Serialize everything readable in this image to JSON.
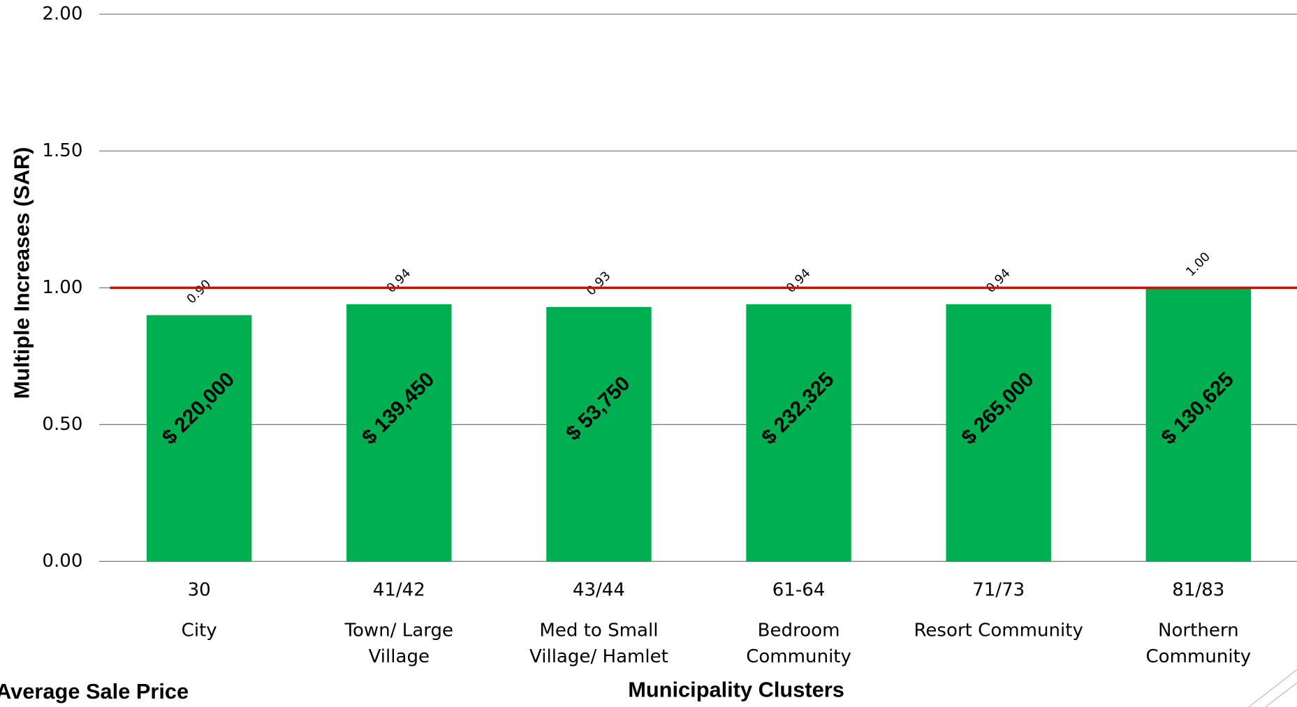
{
  "chart_data": {
    "type": "bar",
    "y_axis_label": "Multiple Increases (SAR)",
    "x_axis_label": "Municipality Clusters",
    "categories": [
      "30",
      "41/42",
      "43/44",
      "61-64",
      "71/73",
      "81/83"
    ],
    "category_labels": [
      [
        "City"
      ],
      [
        "Town/ Large",
        "Village"
      ],
      [
        "Med to Small",
        "Village/ Hamlet"
      ],
      [
        "Bedroom",
        "Community"
      ],
      [
        "Resort Community"
      ],
      [
        "Northern",
        "Community"
      ]
    ],
    "values": [
      0.9,
      0.94,
      0.93,
      0.94,
      0.94,
      1.0
    ],
    "value_labels": [
      "0.90",
      "0.94",
      "0.93",
      "0.94",
      "0.94",
      "1.00"
    ],
    "color": "#00b050",
    "average_sale_price": {
      "name": "Average Sale Price",
      "values": [
        220000,
        139450,
        53750,
        232325,
        265000,
        130625
      ],
      "value_labels": [
        "$ 220,000",
        "$ 139,450",
        "$ 53,750",
        "$ 232,325",
        "$ 265,000",
        "$ 130,625"
      ]
    },
    "reference_line": {
      "value": 1,
      "color": "#e00000"
    },
    "ylim": [
      0,
      2
    ],
    "yticks": [
      {
        "value": 0,
        "label": "0.00"
      },
      {
        "value": 0.5,
        "label": "0.50"
      },
      {
        "value": 1,
        "label": "1.00"
      },
      {
        "value": 1.5,
        "label": "1.50"
      },
      {
        "value": 2,
        "label": "2.00"
      }
    ],
    "grid": true
  }
}
